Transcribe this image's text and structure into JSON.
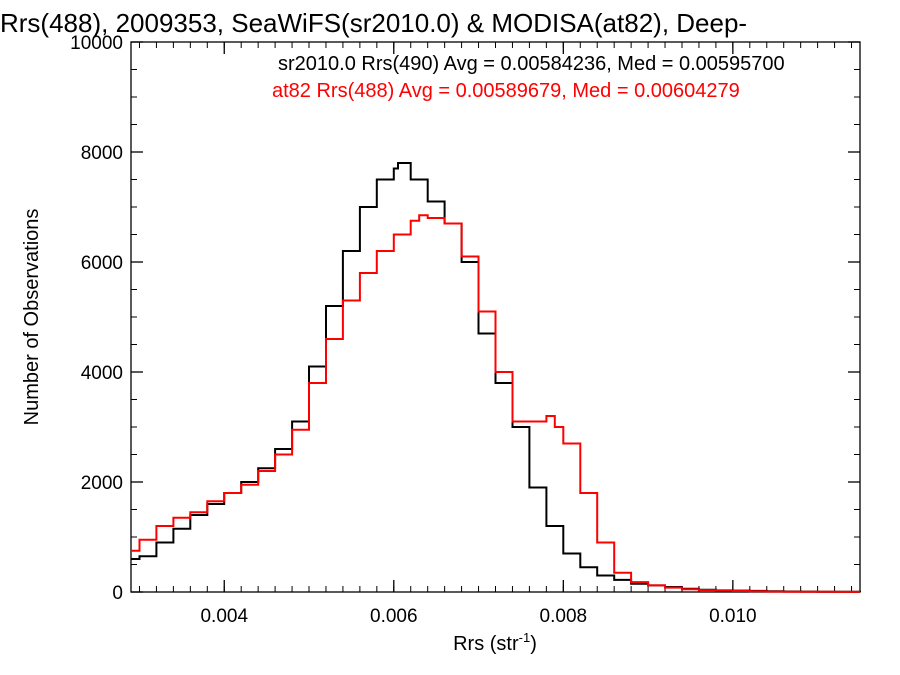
{
  "chart_data": {
    "type": "line",
    "title": "Rrs(488), 2009353, SeaWiFS(sr2010.0) & MODISA(at82), Deep-",
    "xlabel_main": "Rrs (str",
    "xlabel_sup": "-1",
    "xlabel_close": ")",
    "ylabel": "Number of Observations",
    "xlim": [
      0.0029,
      0.0115
    ],
    "ylim": [
      0,
      10000
    ],
    "x_ticks": [
      0.004,
      0.006,
      0.008,
      0.01
    ],
    "x_tick_labels": [
      "0.004",
      "0.006",
      "0.008",
      "0.010"
    ],
    "x_minor_step": 0.0002,
    "y_ticks": [
      0,
      2000,
      4000,
      6000,
      8000,
      10000
    ],
    "y_tick_labels": [
      "0",
      "2000",
      "4000",
      "6000",
      "8000",
      "10000"
    ],
    "y_minor_step": 500,
    "grid": false,
    "annotations": [
      {
        "text": "sr2010.0 Rrs(490) Avg = 0.00584236, Med = 0.00595700",
        "color": "#000000"
      },
      {
        "text": "at82 Rrs(488) Avg = 0.00589679, Med = 0.00604279",
        "color": "#ff0000"
      }
    ],
    "series": [
      {
        "color": "#000000",
        "style": "step",
        "x": [
          0.0029,
          0.003,
          0.0032,
          0.0034,
          0.0036,
          0.0038,
          0.004,
          0.0042,
          0.0044,
          0.0046,
          0.0048,
          0.005,
          0.0052,
          0.0054,
          0.0056,
          0.0058,
          0.006,
          0.00605,
          0.0062,
          0.0064,
          0.0066,
          0.0068,
          0.007,
          0.0072,
          0.0074,
          0.0076,
          0.0078,
          0.008,
          0.0082,
          0.0084,
          0.0086,
          0.0088,
          0.009,
          0.0092,
          0.0094,
          0.0096,
          0.0098,
          0.01,
          0.0102,
          0.0104,
          0.0106,
          0.0108,
          0.011,
          0.0112,
          0.0115
        ],
        "y": [
          600,
          650,
          900,
          1150,
          1400,
          1600,
          1800,
          2000,
          2250,
          2600,
          3100,
          4100,
          5200,
          6200,
          7000,
          7500,
          7700,
          7800,
          7500,
          7100,
          6700,
          6000,
          4700,
          3800,
          3000,
          1900,
          1200,
          700,
          450,
          300,
          220,
          150,
          120,
          90,
          60,
          40,
          30,
          25,
          20,
          15,
          10,
          8,
          6,
          4,
          2
        ]
      },
      {
        "color": "#ff0000",
        "style": "step",
        "x": [
          0.0029,
          0.003,
          0.0032,
          0.0034,
          0.0036,
          0.0038,
          0.004,
          0.0042,
          0.0044,
          0.0046,
          0.0048,
          0.005,
          0.0052,
          0.0054,
          0.0056,
          0.0058,
          0.006,
          0.0062,
          0.0063,
          0.0064,
          0.0066,
          0.0068,
          0.007,
          0.0072,
          0.0074,
          0.0076,
          0.0078,
          0.0079,
          0.008,
          0.0082,
          0.0084,
          0.0086,
          0.0088,
          0.009,
          0.0092,
          0.0094,
          0.0096,
          0.0098,
          0.01,
          0.0102,
          0.0104,
          0.0106,
          0.0108,
          0.011,
          0.0112,
          0.0115
        ],
        "y": [
          750,
          950,
          1200,
          1350,
          1450,
          1650,
          1800,
          1950,
          2200,
          2500,
          2950,
          3800,
          4600,
          5300,
          5800,
          6200,
          6500,
          6750,
          6850,
          6800,
          6700,
          6100,
          5100,
          4000,
          3100,
          3100,
          3200,
          3000,
          2700,
          1800,
          900,
          350,
          180,
          120,
          80,
          50,
          35,
          25,
          18,
          12,
          8,
          6,
          4,
          3,
          2,
          1
        ]
      }
    ]
  }
}
